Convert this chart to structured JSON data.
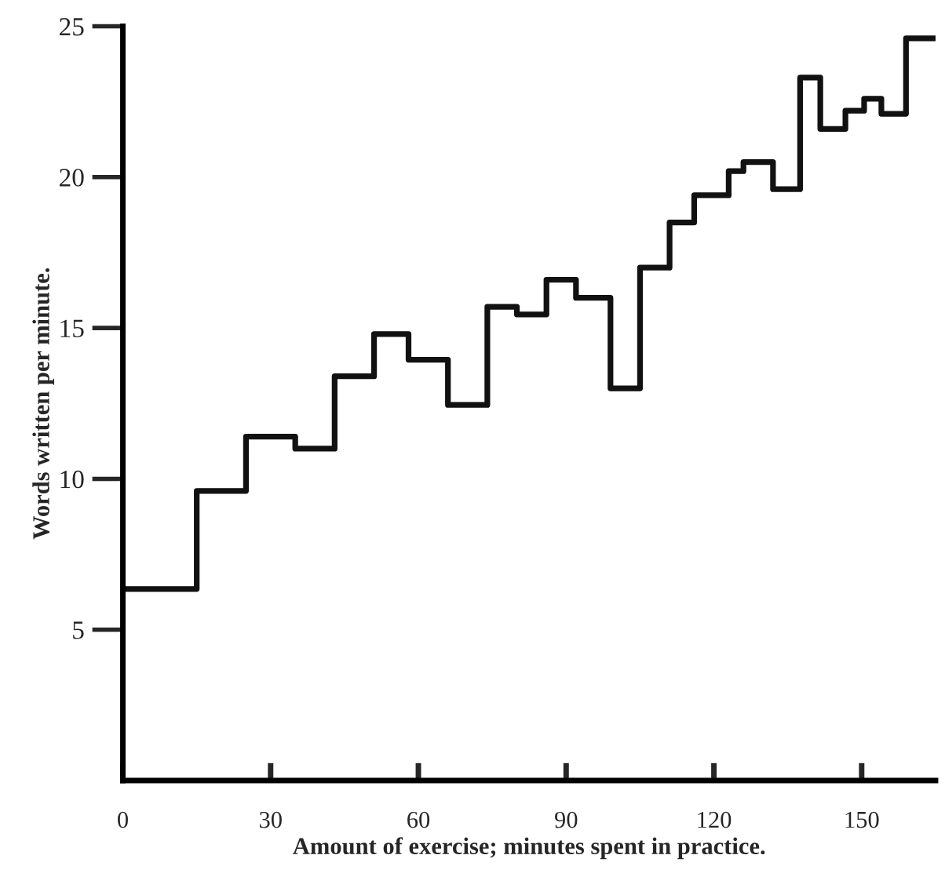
{
  "chart_data": {
    "type": "step",
    "xlabel": "Amount of exercise; minutes spent in practice.",
    "ylabel": "Words written per minute.",
    "x": [
      0,
      15,
      25,
      35,
      43,
      51,
      58,
      66,
      74,
      80,
      86,
      92,
      99,
      105,
      111,
      116,
      123,
      126,
      132,
      137.5,
      141.6,
      146.7,
      150.5,
      154,
      159,
      165
    ],
    "series": [
      {
        "color": "#111111",
        "values": [
          6.35,
          9.6,
          11.4,
          11.0,
          13.4,
          14.8,
          13.95,
          12.45,
          15.7,
          15.45,
          16.6,
          16.0,
          13.0,
          17.0,
          18.5,
          19.4,
          20.2,
          20.5,
          19.6,
          23.3,
          21.6,
          22.2,
          22.6,
          22.1,
          24.6,
          24.6
        ]
      }
    ],
    "xlim": [
      0,
      165
    ],
    "ylim": [
      0,
      25
    ],
    "xticks": [
      0,
      30,
      60,
      90,
      120,
      150
    ],
    "yticks": [
      5,
      10,
      15,
      20,
      25
    ],
    "grid": false,
    "legend": false
  }
}
